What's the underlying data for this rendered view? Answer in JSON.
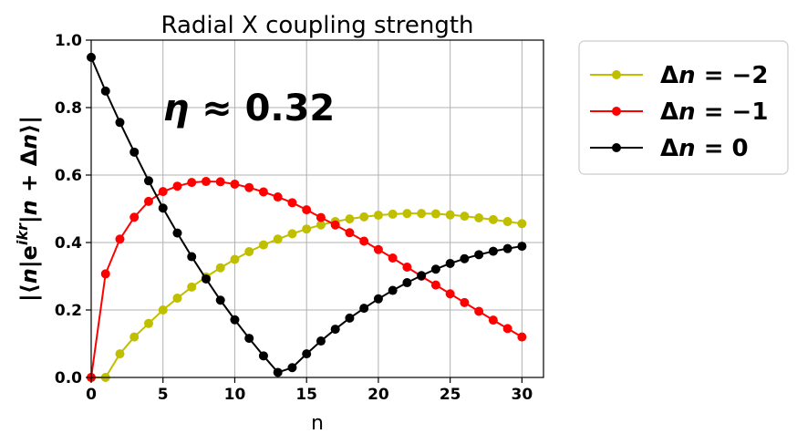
{
  "chart_data": {
    "type": "line",
    "title": "Radial X coupling strength",
    "xlabel": "n",
    "ylabel": "|⟨n|e^{ikr}|n + Δn⟩|",
    "ylabel_parts": {
      "pre": "|⟨",
      "n1": "n",
      "bar1": "|",
      "e": "e",
      "sup": "ikr",
      "bar2": "|",
      "n2": "n",
      "plus": " + ",
      "delta": "Δ",
      "n3": "n",
      "post": "⟩|"
    },
    "xlim": [
      0,
      31.5
    ],
    "ylim": [
      0,
      1.0
    ],
    "xticks": [
      0,
      5,
      10,
      15,
      20,
      25,
      30
    ],
    "yticks": [
      0.0,
      0.2,
      0.4,
      0.6,
      0.8,
      1.0
    ],
    "grid": true,
    "legend_position": "outside-top-right",
    "annotation": {
      "label": "η ≈ 0.32",
      "eta": "η",
      "rest": " ≈ 0.32",
      "x": 5,
      "y": 0.8
    },
    "x": [
      0,
      1,
      2,
      3,
      4,
      5,
      6,
      7,
      8,
      9,
      10,
      11,
      12,
      13,
      14,
      15,
      16,
      17,
      18,
      19,
      20,
      21,
      22,
      23,
      24,
      25,
      26,
      27,
      28,
      29,
      30
    ],
    "series": [
      {
        "name": "Δn = −2",
        "legend_delta": "Δ",
        "legend_n": "n",
        "legend_rest": " = −2",
        "color": "#bfbf00",
        "values": [
          0.0,
          0.0,
          0.07,
          0.12,
          0.16,
          0.2,
          0.235,
          0.268,
          0.298,
          0.325,
          0.35,
          0.373,
          0.393,
          0.41,
          0.426,
          0.44,
          0.452,
          0.462,
          0.47,
          0.476,
          0.481,
          0.484,
          0.486,
          0.486,
          0.485,
          0.482,
          0.478,
          0.473,
          0.468,
          0.462,
          0.456
        ]
      },
      {
        "name": "Δn = −1",
        "legend_delta": "Δ",
        "legend_n": "n",
        "legend_rest": " = −1",
        "color": "#ff0000",
        "values": [
          0.0,
          0.307,
          0.41,
          0.475,
          0.522,
          0.551,
          0.567,
          0.578,
          0.581,
          0.58,
          0.573,
          0.563,
          0.55,
          0.535,
          0.518,
          0.497,
          0.474,
          0.452,
          0.429,
          0.404,
          0.379,
          0.354,
          0.327,
          0.3,
          0.274,
          0.248,
          0.222,
          0.196,
          0.17,
          0.145,
          0.12
        ]
      },
      {
        "name": "Δn = 0",
        "legend_delta": "Δ",
        "legend_n": "n",
        "legend_rest": " = 0",
        "color": "#000000",
        "values": [
          0.949,
          0.849,
          0.756,
          0.668,
          0.583,
          0.502,
          0.428,
          0.358,
          0.292,
          0.229,
          0.171,
          0.116,
          0.064,
          0.015,
          0.029,
          0.07,
          0.108,
          0.143,
          0.176,
          0.205,
          0.233,
          0.258,
          0.281,
          0.302,
          0.321,
          0.338,
          0.352,
          0.364,
          0.374,
          0.382,
          0.389
        ]
      }
    ]
  }
}
